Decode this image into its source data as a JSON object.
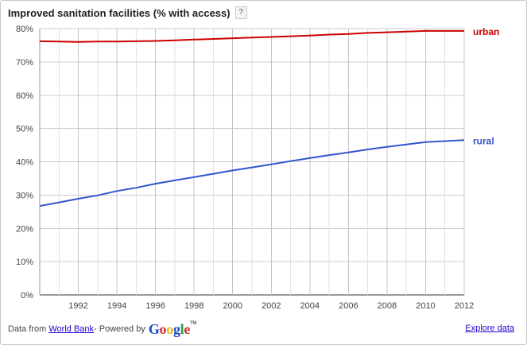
{
  "header": {
    "title": "Improved sanitation facilities (% with access)",
    "help_label": "?"
  },
  "footer": {
    "data_from": "Data from",
    "source_link": "World Bank",
    "powered_by": " - Powered by",
    "google_letters": [
      {
        "ch": "G",
        "color": "#1a49c5"
      },
      {
        "ch": "o",
        "color": "#d32f2f"
      },
      {
        "ch": "o",
        "color": "#f5b400"
      },
      {
        "ch": "g",
        "color": "#1a49c5"
      },
      {
        "ch": "l",
        "color": "#1e9e3a"
      },
      {
        "ch": "e",
        "color": "#d32f2f"
      }
    ],
    "google_tm": "TM",
    "explore_link": "Explore data"
  },
  "chart_data": {
    "type": "line",
    "xlim": [
      1990,
      2012
    ],
    "ylim": [
      0,
      80
    ],
    "x_ticks": [
      1992,
      1994,
      1996,
      1998,
      2000,
      2002,
      2004,
      2006,
      2008,
      2010,
      2012
    ],
    "y_ticks": [
      0,
      10,
      20,
      30,
      40,
      50,
      60,
      70,
      80
    ],
    "y_tick_labels": [
      "0%",
      "10%",
      "20%",
      "30%",
      "40%",
      "50%",
      "60%",
      "70%",
      "80%"
    ],
    "grid": true,
    "legend_placement": "right-end-labels",
    "series": [
      {
        "name": "urban",
        "color": "#cc0000",
        "x": [
          1990,
          1991,
          1992,
          1993,
          1994,
          1995,
          1996,
          1997,
          1998,
          1999,
          2000,
          2001,
          2002,
          2003,
          2004,
          2005,
          2006,
          2007,
          2008,
          2009,
          2010,
          2011,
          2012
        ],
        "y": [
          76.2,
          76.1,
          76.0,
          76.1,
          76.1,
          76.2,
          76.3,
          76.5,
          76.7,
          76.9,
          77.1,
          77.3,
          77.5,
          77.7,
          77.9,
          78.2,
          78.4,
          78.7,
          78.9,
          79.1,
          79.3,
          79.3,
          79.3
        ]
      },
      {
        "name": "rural",
        "color": "#3355cc",
        "x": [
          1990,
          1991,
          1992,
          1993,
          1994,
          1995,
          1996,
          1997,
          1998,
          1999,
          2000,
          2001,
          2002,
          2003,
          2004,
          2005,
          2006,
          2007,
          2008,
          2009,
          2010,
          2011,
          2012
        ],
        "y": [
          26.7,
          27.8,
          28.9,
          29.9,
          31.2,
          32.2,
          33.4,
          34.4,
          35.4,
          36.4,
          37.4,
          38.3,
          39.2,
          40.2,
          41.1,
          42.0,
          42.8,
          43.7,
          44.5,
          45.2,
          45.9,
          46.2,
          46.5
        ]
      }
    ]
  }
}
